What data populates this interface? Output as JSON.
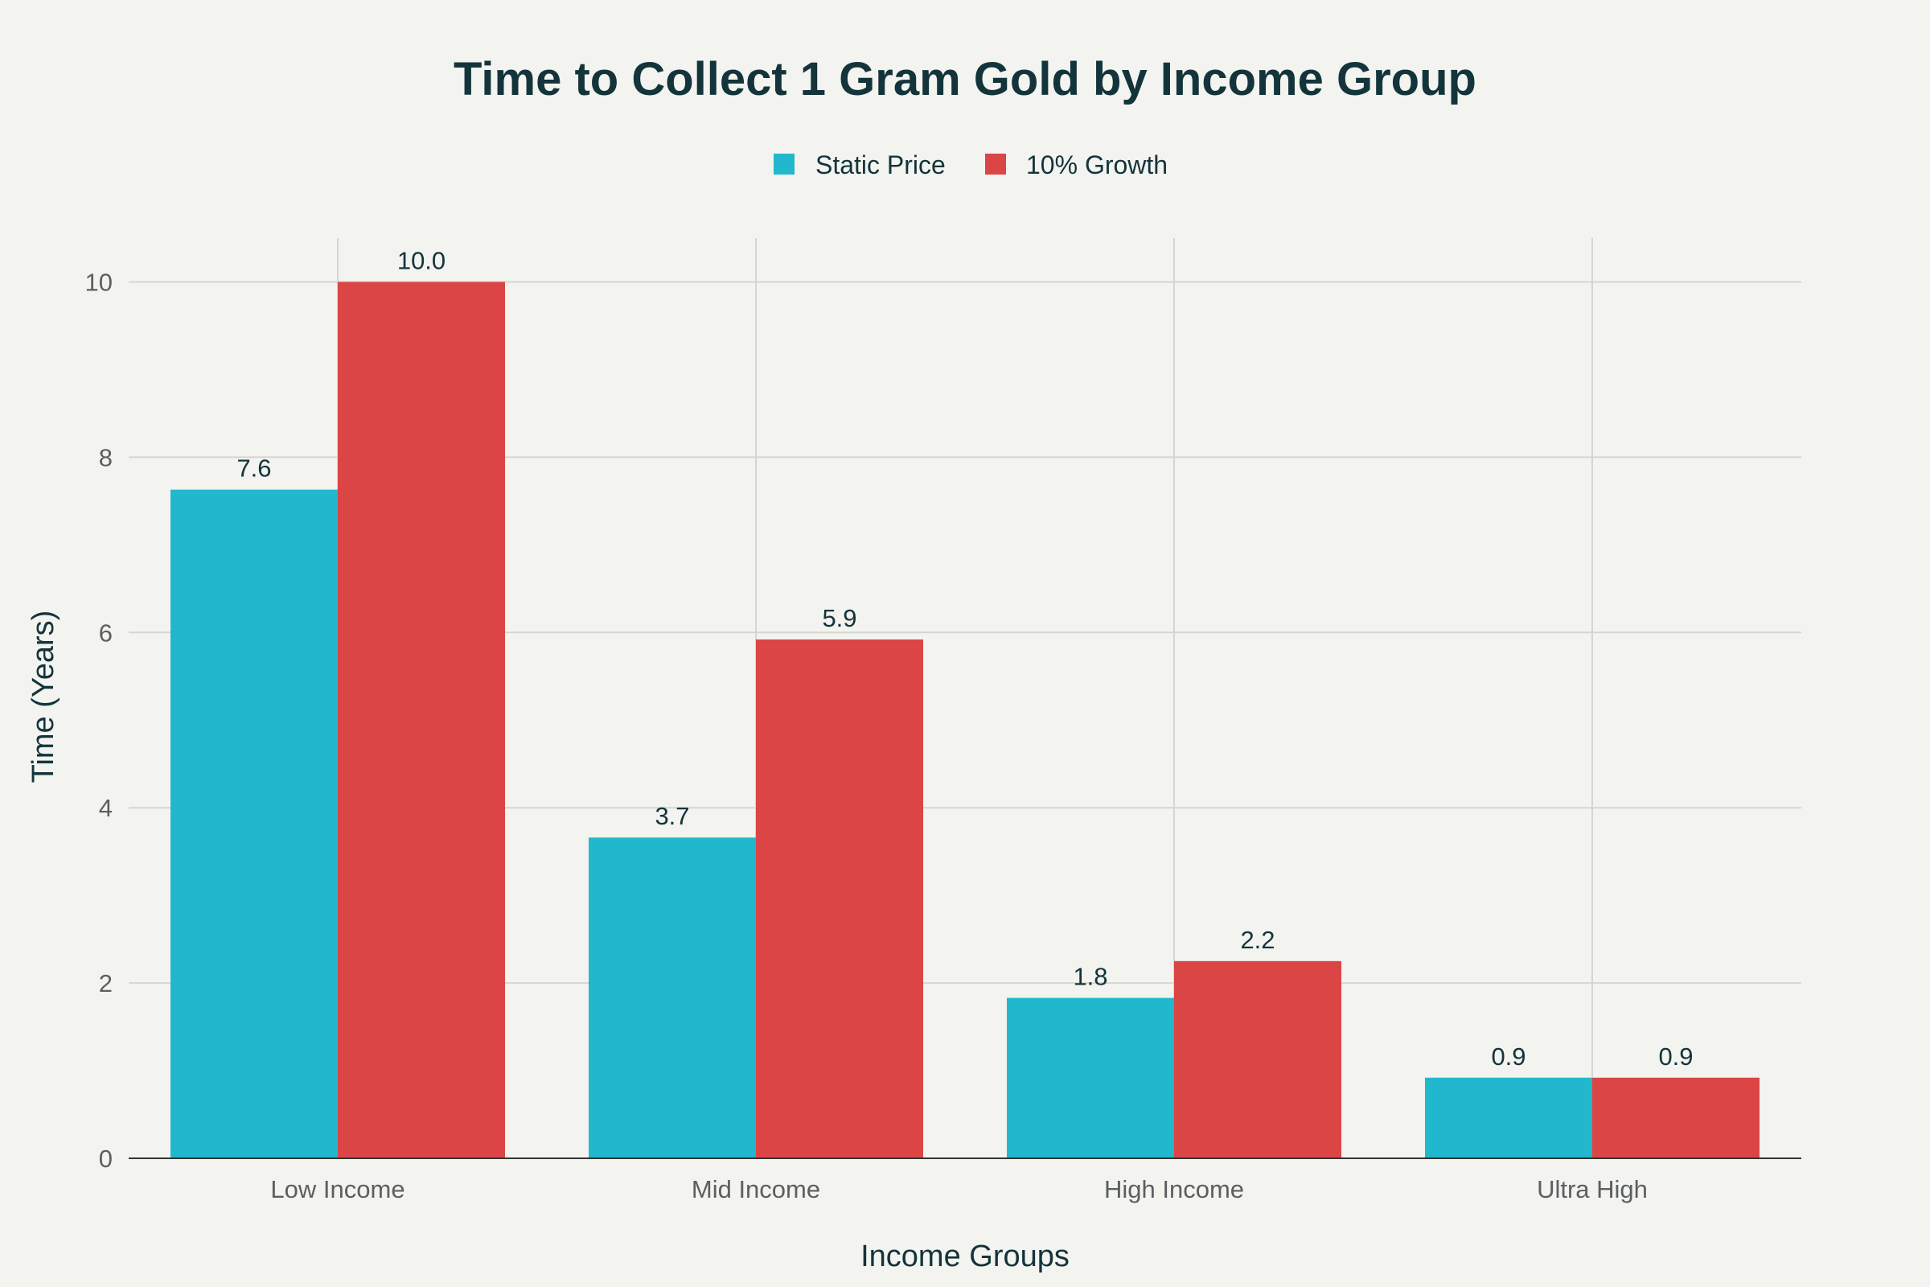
{
  "chart_data": {
    "type": "bar",
    "title": "Time to Collect 1 Gram Gold by Income Group",
    "xlabel": "Income Groups",
    "ylabel": "Time (Years)",
    "categories": [
      "Low Income",
      "Mid Income",
      "High Income",
      "Ultra High"
    ],
    "series": [
      {
        "name": "Static Price",
        "color": "#21b8cd",
        "values": [
          7.63,
          3.66,
          1.83,
          0.92
        ],
        "labels": [
          "7.6",
          "3.7",
          "1.8",
          "0.9"
        ]
      },
      {
        "name": "10% Growth",
        "color": "#db4545",
        "values": [
          10.0,
          5.92,
          2.25,
          0.92
        ],
        "labels": [
          "10.0",
          "5.9",
          "2.2",
          "0.9"
        ]
      }
    ],
    "ylim": [
      0,
      10.5
    ],
    "yticks": [
      0,
      2,
      4,
      6,
      8,
      10
    ],
    "grid": true,
    "legend": "top-center"
  }
}
